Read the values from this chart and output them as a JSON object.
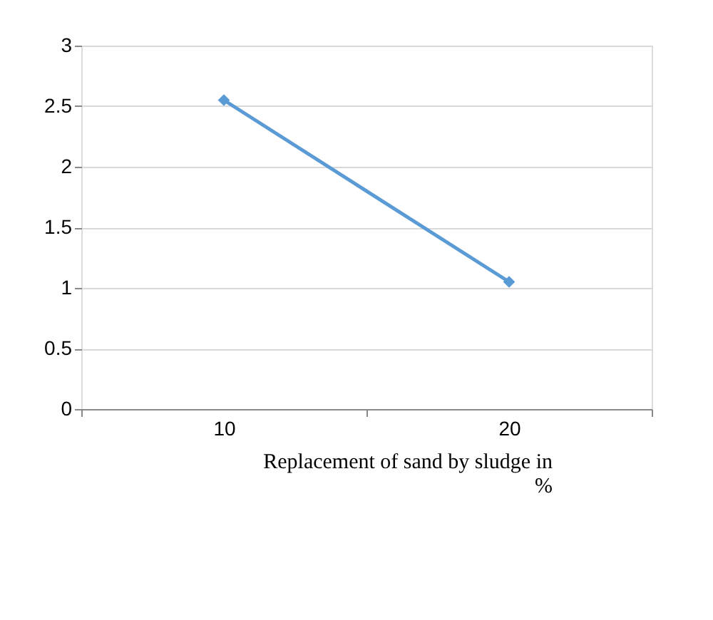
{
  "chart_data": {
    "type": "line",
    "categories": [
      "10",
      "20"
    ],
    "series": [
      {
        "color": "#5b9bd5",
        "values": [
          2.55,
          1.05
        ]
      }
    ],
    "xlabel": "Replacement of sand by sludge in %",
    "ylim": [
      0,
      3
    ],
    "yticks": [
      0,
      0.5,
      1,
      1.5,
      2,
      2.5,
      3
    ],
    "grid": "y",
    "marker": "diamond",
    "line_style": "solid"
  }
}
